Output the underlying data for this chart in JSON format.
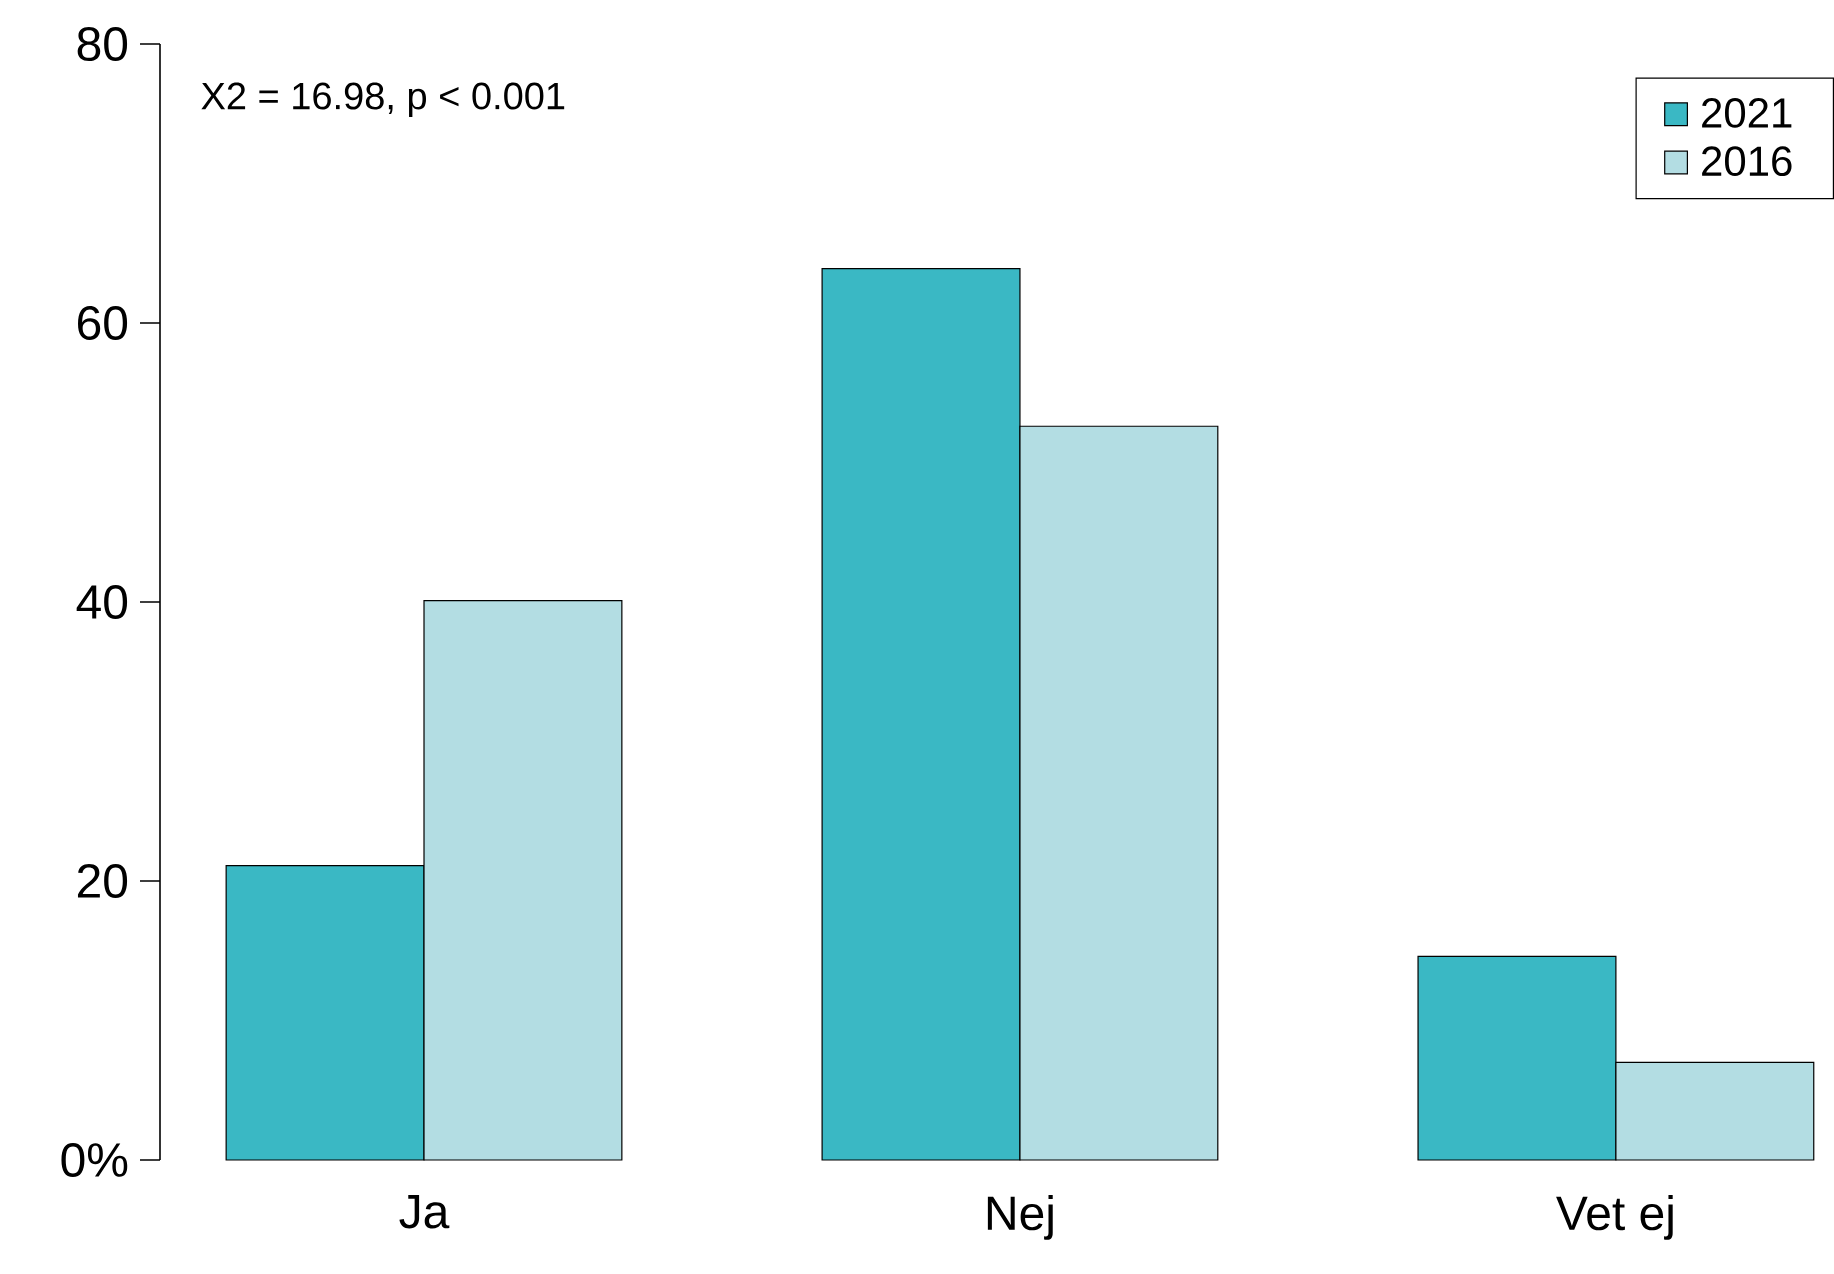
{
  "chart_data": {
    "type": "bar",
    "categories": [
      "Ja",
      "Nej",
      "Vet ej"
    ],
    "series": [
      {
        "name": "2021",
        "color": "#3ab8c4",
        "values": [
          21.1,
          63.9,
          14.6
        ]
      },
      {
        "name": "2016",
        "color": "#b3dde3",
        "values": [
          40.1,
          52.6,
          7.0
        ]
      }
    ],
    "ylim": [
      0,
      80
    ],
    "yticks": [
      {
        "value": 0,
        "label": "0%"
      },
      20,
      40,
      60,
      80
    ],
    "annotations": [
      "X2 = 16.98, p < 0.001"
    ],
    "legend": "top right",
    "grid": false
  }
}
